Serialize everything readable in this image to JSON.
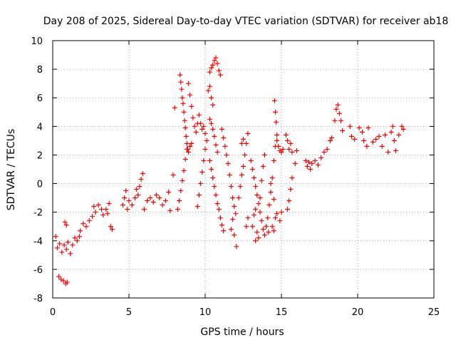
{
  "chart_data": {
    "type": "scatter",
    "title": "Day 208 of 2025, Sidereal Day-to-day VTEC variation (SDTVAR) for receiver ab18",
    "xlabel": "GPS time / hours",
    "ylabel": "SDTVAR / TECUs",
    "xlim": [
      0,
      25
    ],
    "ylim": [
      -8,
      10
    ],
    "xticks": [
      0,
      5,
      10,
      15,
      20,
      25
    ],
    "yticks": [
      -8,
      -6,
      -4,
      -2,
      0,
      2,
      4,
      6,
      8,
      10
    ],
    "grid": true,
    "marker": "+",
    "color": "#ff0000",
    "series": [
      {
        "name": "SDTVAR",
        "points": [
          [
            0.2,
            -3.7
          ],
          [
            0.3,
            -4.5
          ],
          [
            0.45,
            -4.2
          ],
          [
            0.6,
            -4.8
          ],
          [
            0.75,
            -4.3
          ],
          [
            0.9,
            -4.6
          ],
          [
            1.0,
            -4.1
          ],
          [
            1.15,
            -4.9
          ],
          [
            1.3,
            -4.3
          ],
          [
            1.45,
            -3.8
          ],
          [
            1.6,
            -4.0
          ],
          [
            1.75,
            -3.7
          ],
          [
            0.4,
            -6.5
          ],
          [
            0.55,
            -6.7
          ],
          [
            0.7,
            -6.8
          ],
          [
            0.85,
            -7.0
          ],
          [
            0.95,
            -6.9
          ],
          [
            0.8,
            -2.7
          ],
          [
            0.9,
            -2.9
          ],
          [
            1.8,
            -3.3
          ],
          [
            2.0,
            -2.8
          ],
          [
            2.2,
            -3.0
          ],
          [
            2.4,
            -2.6
          ],
          [
            2.6,
            -2.3
          ],
          [
            2.8,
            -2.0
          ],
          [
            2.7,
            -1.6
          ],
          [
            3.0,
            -1.5
          ],
          [
            3.2,
            -1.8
          ],
          [
            3.3,
            -2.2
          ],
          [
            3.5,
            -1.8
          ],
          [
            3.6,
            -2.1
          ],
          [
            3.7,
            -1.4
          ],
          [
            3.8,
            -3.0
          ],
          [
            3.9,
            -3.2
          ],
          [
            4.6,
            -1.5
          ],
          [
            4.7,
            -1.0
          ],
          [
            4.8,
            -0.5
          ],
          [
            4.9,
            -1.8
          ],
          [
            5.0,
            -1.2
          ],
          [
            5.2,
            -1.5
          ],
          [
            5.4,
            -1.0
          ],
          [
            5.5,
            -0.4
          ],
          [
            5.6,
            -0.8
          ],
          [
            5.7,
            -0.2
          ],
          [
            5.8,
            0.3
          ],
          [
            5.9,
            0.7
          ],
          [
            6.0,
            -1.8
          ],
          [
            6.2,
            -1.2
          ],
          [
            6.4,
            -1.0
          ],
          [
            6.6,
            -1.3
          ],
          [
            6.8,
            -0.8
          ],
          [
            7.0,
            -1.0
          ],
          [
            7.2,
            -1.5
          ],
          [
            7.4,
            -1.2
          ],
          [
            7.6,
            -0.6
          ],
          [
            7.7,
            -1.9
          ],
          [
            7.9,
            0.6
          ],
          [
            8.0,
            5.3
          ],
          [
            8.2,
            -1.8
          ],
          [
            8.3,
            -1.2
          ],
          [
            8.4,
            -0.5
          ],
          [
            8.5,
            0.2
          ],
          [
            8.6,
            0.9
          ],
          [
            8.7,
            1.7
          ],
          [
            8.8,
            2.4
          ],
          [
            8.9,
            2.2
          ],
          [
            9.0,
            2.6
          ],
          [
            9.1,
            2.8
          ],
          [
            8.35,
            7.6
          ],
          [
            8.4,
            7.1
          ],
          [
            8.45,
            6.6
          ],
          [
            8.5,
            6.0
          ],
          [
            8.55,
            5.6
          ],
          [
            8.6,
            5.0
          ],
          [
            8.65,
            4.4
          ],
          [
            8.7,
            3.9
          ],
          [
            8.75,
            3.3
          ],
          [
            8.8,
            2.8
          ],
          [
            8.85,
            2.4
          ],
          [
            8.9,
            7.0
          ],
          [
            9.0,
            6.2
          ],
          [
            9.1,
            5.4
          ],
          [
            9.2,
            4.6
          ],
          [
            9.3,
            4.0
          ],
          [
            9.4,
            3.6
          ],
          [
            9.5,
            4.2
          ],
          [
            9.6,
            4.8
          ],
          [
            9.7,
            4.2
          ],
          [
            9.8,
            3.8
          ],
          [
            9.9,
            4.0
          ],
          [
            10.0,
            3.5
          ],
          [
            10.1,
            3.0
          ],
          [
            9.5,
            -1.6
          ],
          [
            9.6,
            -0.8
          ],
          [
            9.7,
            0.0
          ],
          [
            9.8,
            0.8
          ],
          [
            9.9,
            1.6
          ],
          [
            10.0,
            2.4
          ],
          [
            10.3,
            7.8
          ],
          [
            10.4,
            8.1
          ],
          [
            10.5,
            8.3
          ],
          [
            10.6,
            8.6
          ],
          [
            10.7,
            8.8
          ],
          [
            10.8,
            8.4
          ],
          [
            10.9,
            7.9
          ],
          [
            11.0,
            7.6
          ],
          [
            10.2,
            6.5
          ],
          [
            10.3,
            6.8
          ],
          [
            10.4,
            6.0
          ],
          [
            10.5,
            5.5
          ],
          [
            10.3,
            4.5
          ],
          [
            10.4,
            4.2
          ],
          [
            10.5,
            3.8
          ],
          [
            10.6,
            3.3
          ],
          [
            10.7,
            2.7
          ],
          [
            10.8,
            2.2
          ],
          [
            10.3,
            1.6
          ],
          [
            10.4,
            1.0
          ],
          [
            10.5,
            0.4
          ],
          [
            10.6,
            -0.2
          ],
          [
            10.7,
            -0.8
          ],
          [
            10.8,
            -1.4
          ],
          [
            10.9,
            -1.8
          ],
          [
            11.0,
            -2.4
          ],
          [
            11.1,
            -2.9
          ],
          [
            11.2,
            -3.3
          ],
          [
            11.1,
            3.8
          ],
          [
            11.2,
            3.2
          ],
          [
            11.3,
            2.6
          ],
          [
            11.4,
            2.0
          ],
          [
            11.5,
            1.4
          ],
          [
            11.6,
            0.6
          ],
          [
            11.7,
            -0.2
          ],
          [
            11.8,
            -1.0
          ],
          [
            11.9,
            -1.6
          ],
          [
            12.0,
            -2.1
          ],
          [
            11.7,
            -3.2
          ],
          [
            11.8,
            -2.5
          ],
          [
            11.9,
            -3.6
          ],
          [
            12.05,
            -4.4
          ],
          [
            12.2,
            -1.0
          ],
          [
            12.3,
            -0.2
          ],
          [
            12.4,
            0.6
          ],
          [
            12.5,
            1.2
          ],
          [
            12.6,
            2.0
          ],
          [
            12.7,
            2.8
          ],
          [
            12.8,
            3.5
          ],
          [
            12.4,
            2.8
          ],
          [
            12.5,
            3.1
          ],
          [
            12.7,
            -3.0
          ],
          [
            12.8,
            -2.4
          ],
          [
            13.0,
            1.6
          ],
          [
            13.1,
            1.0
          ],
          [
            13.2,
            0.4
          ],
          [
            13.3,
            -0.2
          ],
          [
            13.4,
            -0.8
          ],
          [
            13.5,
            -1.4
          ],
          [
            13.6,
            -2.0
          ],
          [
            13.7,
            -2.6
          ],
          [
            13.8,
            -3.2
          ],
          [
            13.9,
            -3.6
          ],
          [
            13.1,
            -3.0
          ],
          [
            13.2,
            -2.2
          ],
          [
            13.3,
            -1.8
          ],
          [
            13.4,
            -3.4
          ],
          [
            13.5,
            -3.8
          ],
          [
            13.6,
            -1.0
          ],
          [
            13.7,
            0.2
          ],
          [
            13.8,
            1.2
          ],
          [
            13.9,
            2.0
          ],
          [
            14.0,
            -3.0
          ],
          [
            14.1,
            -2.4
          ],
          [
            14.2,
            -1.5
          ],
          [
            14.3,
            -0.6
          ],
          [
            14.4,
            0.4
          ],
          [
            14.5,
            1.6
          ],
          [
            14.6,
            2.6
          ],
          [
            14.7,
            3.4
          ],
          [
            13.3,
            -4.0
          ],
          [
            14.15,
            -3.4
          ],
          [
            14.3,
            0.0
          ],
          [
            14.5,
            -1.1
          ],
          [
            14.4,
            -3.0
          ],
          [
            14.5,
            -3.3
          ],
          [
            14.6,
            -2.4
          ],
          [
            14.7,
            -2.1
          ],
          [
            14.9,
            -2.6
          ],
          [
            15.0,
            -2.0
          ],
          [
            14.55,
            5.8
          ],
          [
            14.6,
            5.0
          ],
          [
            14.65,
            4.3
          ],
          [
            14.7,
            3.0
          ],
          [
            14.8,
            2.6
          ],
          [
            14.9,
            2.3
          ],
          [
            15.0,
            2.2
          ],
          [
            15.1,
            2.4
          ],
          [
            15.3,
            3.4
          ],
          [
            15.4,
            3.0
          ],
          [
            15.5,
            2.4
          ],
          [
            15.6,
            2.8
          ],
          [
            15.7,
            2.2
          ],
          [
            15.9,
            1.4
          ],
          [
            15.4,
            -1.8
          ],
          [
            15.5,
            -1.2
          ],
          [
            15.6,
            -0.4
          ],
          [
            15.7,
            0.4
          ],
          [
            16.0,
            2.3
          ],
          [
            16.6,
            1.6
          ],
          [
            16.7,
            1.2
          ],
          [
            16.8,
            1.5
          ],
          [
            16.9,
            1.0
          ],
          [
            17.0,
            1.4
          ],
          [
            17.2,
            1.6
          ],
          [
            17.4,
            1.3
          ],
          [
            17.6,
            1.8
          ],
          [
            17.8,
            2.2
          ],
          [
            18.0,
            2.4
          ],
          [
            18.2,
            3.0
          ],
          [
            18.3,
            3.2
          ],
          [
            18.5,
            4.4
          ],
          [
            18.6,
            5.2
          ],
          [
            18.7,
            5.5
          ],
          [
            18.8,
            4.9
          ],
          [
            18.9,
            4.4
          ],
          [
            19.0,
            3.7
          ],
          [
            19.5,
            4.0
          ],
          [
            19.6,
            3.3
          ],
          [
            19.8,
            3.1
          ],
          [
            20.1,
            3.9
          ],
          [
            20.3,
            3.6
          ],
          [
            20.4,
            3.0
          ],
          [
            20.6,
            2.6
          ],
          [
            20.7,
            3.9
          ],
          [
            21.0,
            2.9
          ],
          [
            21.2,
            3.1
          ],
          [
            21.4,
            3.3
          ],
          [
            21.6,
            2.6
          ],
          [
            21.8,
            3.4
          ],
          [
            22.0,
            2.2
          ],
          [
            22.2,
            3.6
          ],
          [
            22.3,
            4.0
          ],
          [
            22.4,
            3.0
          ],
          [
            22.5,
            2.3
          ],
          [
            22.7,
            3.4
          ],
          [
            22.9,
            4.0
          ],
          [
            23.0,
            3.8
          ]
        ]
      }
    ]
  }
}
